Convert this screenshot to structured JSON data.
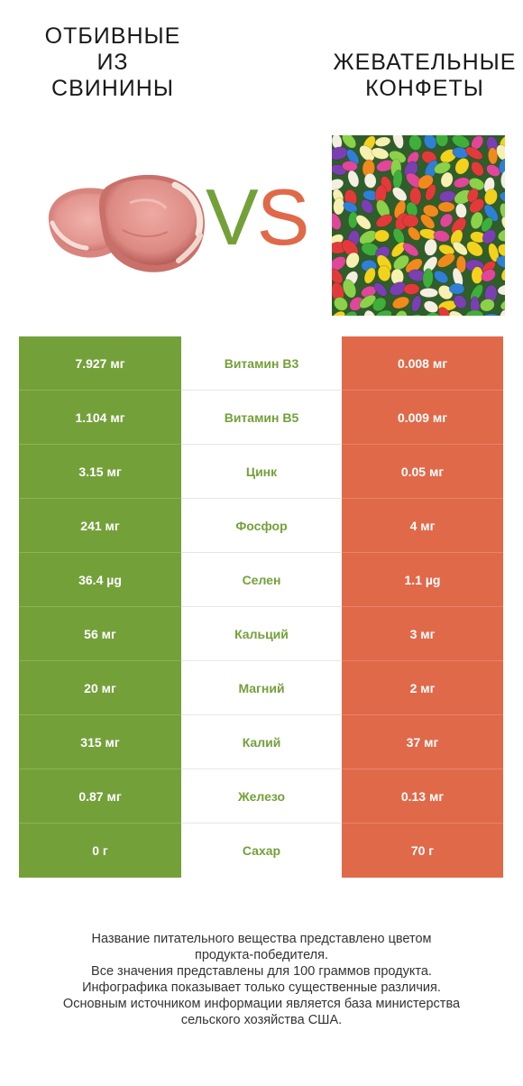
{
  "header": {
    "left_title": "ОТБИВНЫЕ\nИЗ\nСВИНИНЫ",
    "right_title": "ЖЕВАТЕЛЬНЫЕ\nКОНФЕТЫ",
    "vs_v": "V",
    "vs_s": "S"
  },
  "colors": {
    "green": "#74a03a",
    "red": "#e0694a"
  },
  "chart_data": {
    "type": "table",
    "columns": [
      "ОТБИВНЫЕ ИЗ СВИНИНЫ",
      "",
      "ЖЕВАТЕЛЬНЫЕ КОНФЕТЫ"
    ],
    "rows": [
      {
        "left": "7.927 мг",
        "nutrient": "Витамин B3",
        "right": "0.008 мг",
        "winner": "green"
      },
      {
        "left": "1.104 мг",
        "nutrient": "Витамин B5",
        "right": "0.009 мг",
        "winner": "green"
      },
      {
        "left": "3.15 мг",
        "nutrient": "Цинк",
        "right": "0.05 мг",
        "winner": "green"
      },
      {
        "left": "241 мг",
        "nutrient": "Фосфор",
        "right": "4 мг",
        "winner": "green"
      },
      {
        "left": "36.4 µg",
        "nutrient": "Селен",
        "right": "1.1 µg",
        "winner": "green"
      },
      {
        "left": "56 мг",
        "nutrient": "Кальций",
        "right": "3 мг",
        "winner": "green"
      },
      {
        "left": "20 мг",
        "nutrient": "Магний",
        "right": "2 мг",
        "winner": "green"
      },
      {
        "left": "315 мг",
        "nutrient": "Калий",
        "right": "37 мг",
        "winner": "green"
      },
      {
        "left": "0.87 мг",
        "nutrient": "Железо",
        "right": "0.13 мг",
        "winner": "green"
      },
      {
        "left": "0 г",
        "nutrient": "Сахар",
        "right": "70 г",
        "winner": "green"
      }
    ]
  },
  "footer": {
    "lines": [
      "Название питательного вещества представлено цветом",
      "продукта-победителя.",
      "Все значения представлены для 100 граммов продукта.",
      "Инфографика показывает только существенные различия.",
      "Основным источником информации является база министерства",
      "сельского хозяйства США."
    ]
  }
}
